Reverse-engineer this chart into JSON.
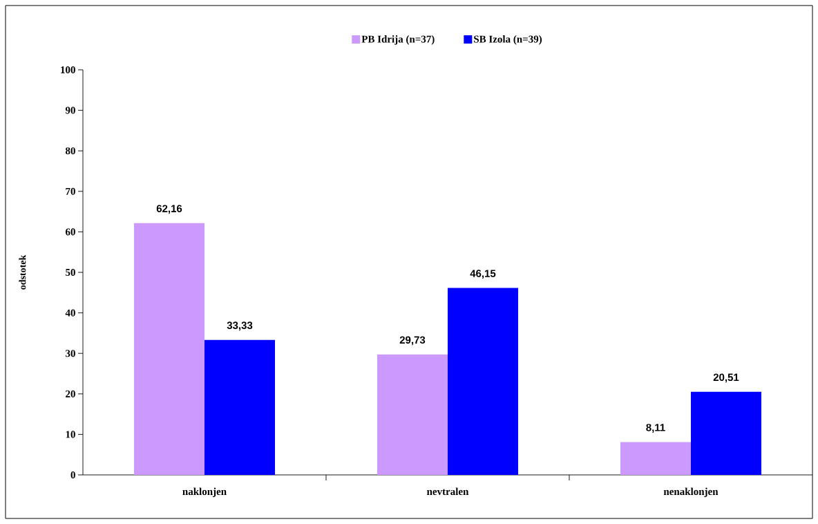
{
  "chart_data": {
    "type": "bar",
    "ylabel": "odstotek",
    "categories": [
      "naklonjen",
      "nevtralen",
      "nenaklonjen"
    ],
    "series": [
      {
        "name": "PB Idrija (n=37)",
        "color": "#cc99ff",
        "values": [
          62.16,
          29.73,
          8.11
        ],
        "value_labels": [
          "62,16",
          "29,73",
          "8,11"
        ]
      },
      {
        "name": "SB Izola (n=39)",
        "color": "#0000ff",
        "values": [
          33.33,
          46.15,
          20.51
        ],
        "value_labels": [
          "33,33",
          "46,15",
          "20,51"
        ]
      }
    ],
    "ylim": [
      0,
      100
    ],
    "yticks": [
      0,
      10,
      20,
      30,
      40,
      50,
      60,
      70,
      80,
      90,
      100
    ],
    "grid": false,
    "legend": "top"
  }
}
